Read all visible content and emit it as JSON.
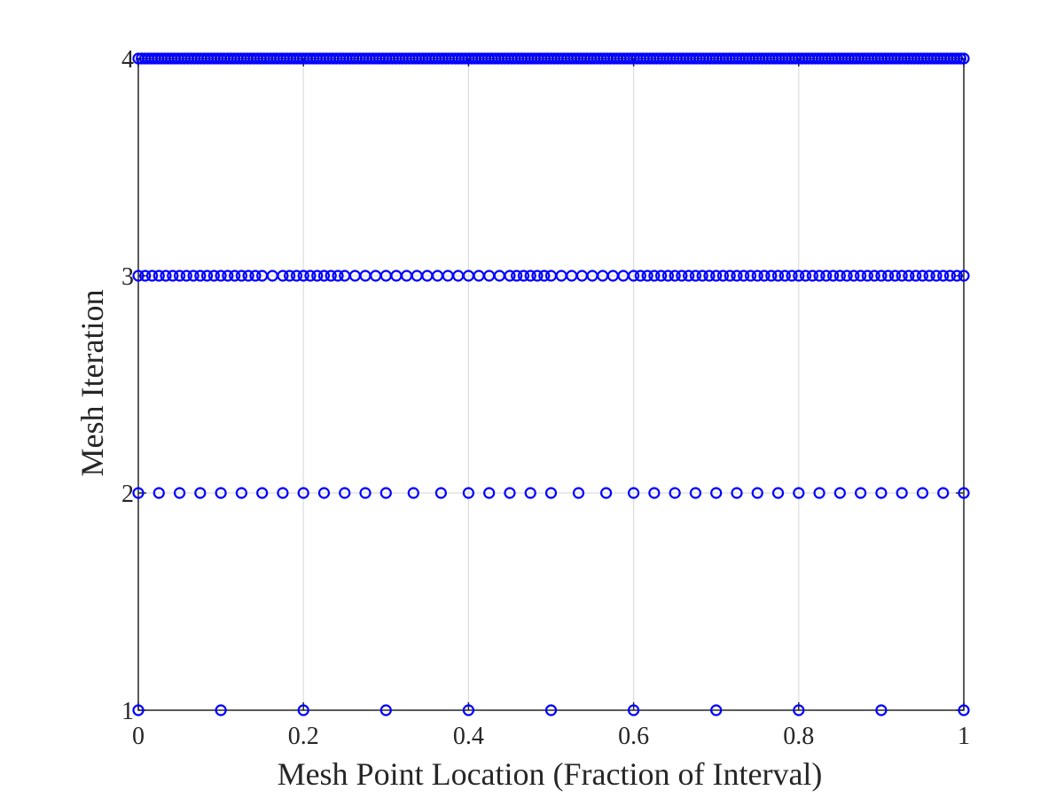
{
  "chart_data": {
    "type": "scatter",
    "xlabel": "Mesh Point Location (Fraction of Interval)",
    "ylabel": "Mesh Iteration",
    "xlim": [
      0,
      1
    ],
    "ylim": [
      1,
      4
    ],
    "xticks": [
      0,
      0.2,
      0.4,
      0.6,
      0.8,
      1
    ],
    "xtick_labels": [
      "0",
      "0.2",
      "0.4",
      "0.6",
      "0.8",
      "1"
    ],
    "yticks": [
      1,
      2,
      3,
      4
    ],
    "ytick_labels": [
      "1",
      "2",
      "3",
      "4"
    ],
    "grid": true,
    "marker": "open-circle",
    "marker_color": "#0000ff",
    "series": [
      {
        "iteration": 1,
        "x": [
          0,
          0.1,
          0.2,
          0.3,
          0.4,
          0.5,
          0.6,
          0.7,
          0.8,
          0.9,
          1
        ]
      },
      {
        "iteration": 2,
        "x": [
          0,
          0.025,
          0.05,
          0.075,
          0.1,
          0.125,
          0.15,
          0.175,
          0.2,
          0.225,
          0.25,
          0.275,
          0.3,
          0.3333,
          0.3667,
          0.4,
          0.425,
          0.45,
          0.475,
          0.5,
          0.5333,
          0.5667,
          0.6,
          0.625,
          0.65,
          0.675,
          0.7,
          0.725,
          0.75,
          0.775,
          0.8,
          0.825,
          0.85,
          0.875,
          0.9,
          0.925,
          0.95,
          0.975,
          1
        ]
      },
      {
        "iteration": 3,
        "x": [
          0,
          0.0083,
          0.0167,
          0.025,
          0.0333,
          0.0417,
          0.05,
          0.0583,
          0.0667,
          0.075,
          0.0833,
          0.0917,
          0.1,
          0.1083,
          0.1167,
          0.125,
          0.1333,
          0.1417,
          0.15,
          0.1625,
          0.175,
          0.1833,
          0.1917,
          0.2,
          0.2083,
          0.2167,
          0.225,
          0.2333,
          0.2417,
          0.25,
          0.2625,
          0.275,
          0.2875,
          0.3,
          0.3125,
          0.325,
          0.3375,
          0.35,
          0.3625,
          0.375,
          0.3875,
          0.4,
          0.4125,
          0.425,
          0.4375,
          0.45,
          0.4583,
          0.4667,
          0.475,
          0.4833,
          0.4917,
          0.5,
          0.5125,
          0.525,
          0.5375,
          0.55,
          0.5625,
          0.575,
          0.5875,
          0.6,
          0.6083,
          0.6167,
          0.625,
          0.6333,
          0.6417,
          0.65,
          0.6583,
          0.6667,
          0.675,
          0.6833,
          0.6917,
          0.7,
          0.7083,
          0.7167,
          0.725,
          0.7333,
          0.7417,
          0.75,
          0.7583,
          0.7667,
          0.775,
          0.7833,
          0.7917,
          0.8,
          0.8083,
          0.8167,
          0.825,
          0.8333,
          0.8417,
          0.85,
          0.8583,
          0.8667,
          0.875,
          0.8833,
          0.8917,
          0.9,
          0.9083,
          0.9167,
          0.925,
          0.9333,
          0.9417,
          0.95,
          0.9583,
          0.9667,
          0.975,
          0.9833,
          0.9917,
          1
        ]
      },
      {
        "iteration": 4,
        "x": [
          0,
          0.004,
          0.008,
          0.012,
          0.016,
          0.02,
          0.024,
          0.028,
          0.032,
          0.036,
          0.04,
          0.044,
          0.048,
          0.052,
          0.056,
          0.06,
          0.064,
          0.068,
          0.072,
          0.076,
          0.08,
          0.084,
          0.088,
          0.092,
          0.096,
          0.1,
          0.104,
          0.108,
          0.112,
          0.116,
          0.12,
          0.124,
          0.128,
          0.132,
          0.136,
          0.14,
          0.144,
          0.148,
          0.152,
          0.156,
          0.16,
          0.164,
          0.168,
          0.172,
          0.176,
          0.18,
          0.184,
          0.188,
          0.192,
          0.196,
          0.2,
          0.204,
          0.208,
          0.212,
          0.216,
          0.22,
          0.224,
          0.228,
          0.232,
          0.236,
          0.24,
          0.244,
          0.248,
          0.252,
          0.256,
          0.26,
          0.264,
          0.268,
          0.272,
          0.276,
          0.28,
          0.284,
          0.288,
          0.292,
          0.296,
          0.3,
          0.304,
          0.308,
          0.312,
          0.316,
          0.32,
          0.324,
          0.328,
          0.332,
          0.336,
          0.34,
          0.344,
          0.348,
          0.352,
          0.356,
          0.36,
          0.364,
          0.368,
          0.372,
          0.376,
          0.38,
          0.384,
          0.388,
          0.392,
          0.396,
          0.4,
          0.404,
          0.408,
          0.412,
          0.416,
          0.42,
          0.424,
          0.428,
          0.432,
          0.436,
          0.44,
          0.444,
          0.448,
          0.452,
          0.456,
          0.46,
          0.464,
          0.468,
          0.472,
          0.476,
          0.48,
          0.484,
          0.488,
          0.492,
          0.496,
          0.5,
          0.504,
          0.508,
          0.512,
          0.516,
          0.52,
          0.524,
          0.528,
          0.532,
          0.536,
          0.54,
          0.544,
          0.548,
          0.552,
          0.556,
          0.56,
          0.564,
          0.568,
          0.572,
          0.576,
          0.58,
          0.584,
          0.588,
          0.592,
          0.596,
          0.6,
          0.604,
          0.608,
          0.612,
          0.616,
          0.62,
          0.624,
          0.628,
          0.632,
          0.636,
          0.64,
          0.644,
          0.648,
          0.652,
          0.656,
          0.66,
          0.664,
          0.668,
          0.672,
          0.676,
          0.68,
          0.684,
          0.688,
          0.692,
          0.696,
          0.7,
          0.704,
          0.708,
          0.712,
          0.716,
          0.72,
          0.724,
          0.728,
          0.732,
          0.736,
          0.74,
          0.744,
          0.748,
          0.752,
          0.756,
          0.76,
          0.764,
          0.768,
          0.772,
          0.776,
          0.78,
          0.784,
          0.788,
          0.792,
          0.796,
          0.8,
          0.804,
          0.808,
          0.812,
          0.816,
          0.82,
          0.824,
          0.828,
          0.832,
          0.836,
          0.84,
          0.844,
          0.848,
          0.852,
          0.856,
          0.86,
          0.864,
          0.868,
          0.872,
          0.876,
          0.88,
          0.884,
          0.888,
          0.892,
          0.896,
          0.9,
          0.904,
          0.908,
          0.912,
          0.916,
          0.92,
          0.924,
          0.928,
          0.932,
          0.936,
          0.94,
          0.944,
          0.948,
          0.952,
          0.956,
          0.96,
          0.964,
          0.968,
          0.972,
          0.976,
          0.98,
          0.984,
          0.988,
          0.992,
          0.996,
          1
        ]
      }
    ]
  }
}
